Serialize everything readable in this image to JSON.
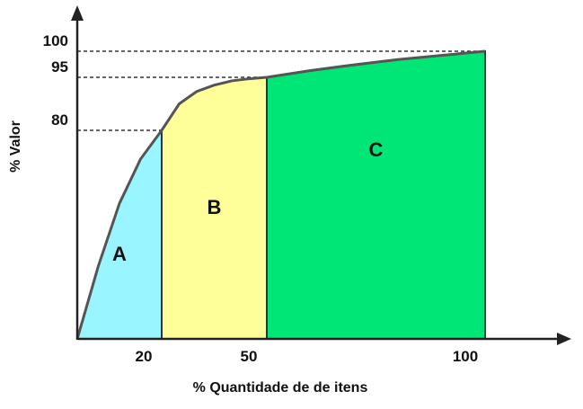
{
  "chart_data": {
    "type": "area",
    "xlabel": "% Quantidade de de itens",
    "ylabel": "% Valor",
    "xlim": [
      0,
      100
    ],
    "ylim": [
      0,
      100
    ],
    "x_ticks": [
      "20",
      "50",
      "100"
    ],
    "y_ticks": [
      "80",
      "95",
      "100"
    ],
    "curve": {
      "x": [
        0,
        5,
        10,
        15,
        20,
        25,
        30,
        35,
        40,
        45,
        50,
        60,
        70,
        80,
        90,
        100
      ],
      "y": [
        0,
        28,
        52,
        69,
        80,
        87.5,
        91,
        92.8,
        94,
        94.6,
        95,
        96.3,
        97.4,
        98.4,
        99.2,
        100
      ]
    },
    "zones": [
      {
        "label": "A",
        "x_start": 0,
        "x_end": 20,
        "color": "#99f5ff"
      },
      {
        "label": "B",
        "x_start": 20,
        "x_end": 50,
        "color": "#ffff99"
      },
      {
        "label": "C",
        "x_start": 50,
        "x_end": 100,
        "color": "#00e676"
      }
    ],
    "reference_lines": [
      {
        "x": 20,
        "y": 80
      },
      {
        "x": 50,
        "y": 95
      },
      {
        "x": 100,
        "y": 100
      }
    ],
    "grid": false,
    "legend": "none"
  }
}
